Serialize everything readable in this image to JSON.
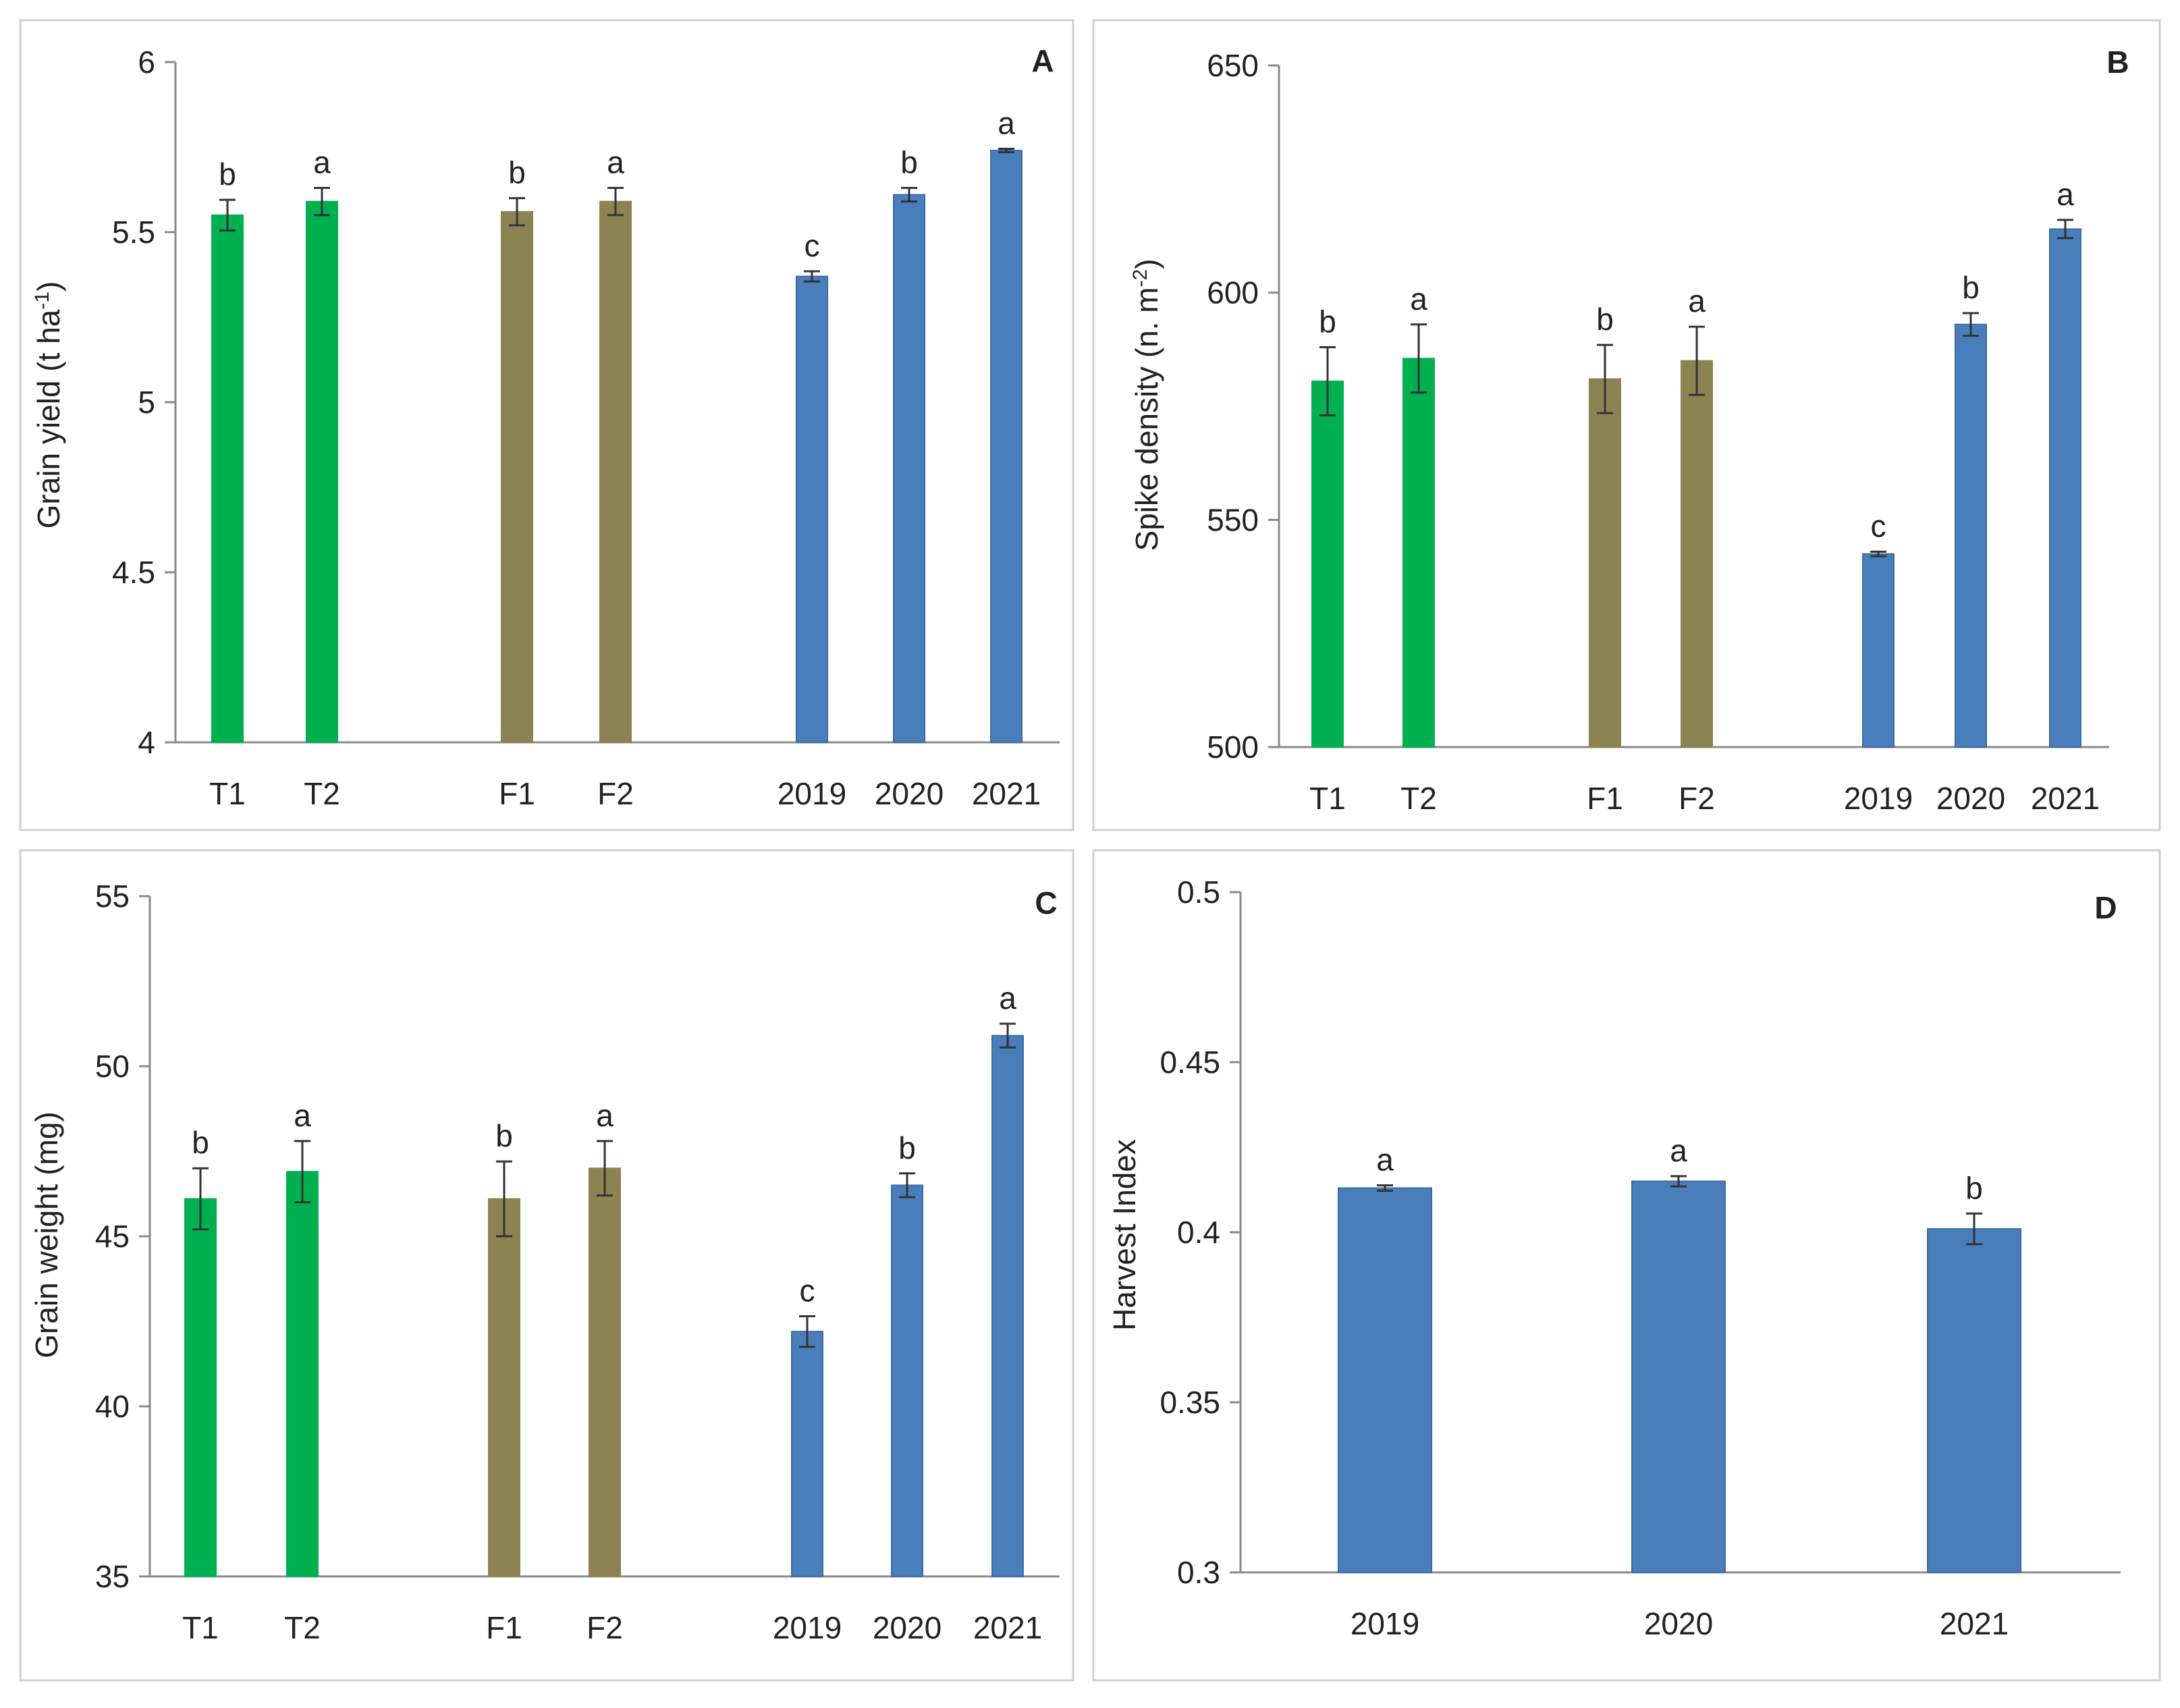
{
  "colors": {
    "tillage": "#00b050",
    "fertilization": "#8c8353",
    "year": "#4a7ebb",
    "bar_stroke_year": "#3b6aa8",
    "axis": "#888888",
    "error_bar": "#333333",
    "panel_border": "#cfcfcf"
  },
  "chart_data": [
    {
      "panel": "A",
      "type": "bar",
      "title": "",
      "xlabel": "",
      "ylabel": "Grain yield (t ha-1)",
      "ylabel_main": "Grain yield (t ha",
      "ylabel_sup": "-1",
      "ylabel_end": ")",
      "ylim": [
        4,
        6
      ],
      "yticks": [
        "6",
        "5.5",
        "5",
        "4.5",
        "4"
      ],
      "ytick_values": [
        6,
        5.5,
        5,
        4.5,
        4
      ],
      "grid": false,
      "categories": [
        "T1",
        "T2",
        "F1",
        "F2",
        "2019",
        "2020",
        "2021"
      ],
      "values": [
        5.55,
        5.59,
        5.56,
        5.59,
        5.37,
        5.61,
        5.74
      ],
      "errors": [
        0.045,
        0.04,
        0.04,
        0.04,
        0.015,
        0.02,
        0.005
      ],
      "letters": [
        "b",
        "a",
        "b",
        "a",
        "c",
        "b",
        "a"
      ],
      "groups": [
        "tillage",
        "tillage",
        "fertilization",
        "fertilization",
        "year",
        "year",
        "year"
      ]
    },
    {
      "panel": "B",
      "type": "bar",
      "title": "",
      "xlabel": "",
      "ylabel": "Spike density (n. m-2)",
      "ylabel_main": "Spike density (n. m",
      "ylabel_sup": "-2",
      "ylabel_end": ")",
      "ylim": [
        500,
        650
      ],
      "yticks": [
        "650",
        "600",
        "550",
        "500"
      ],
      "ytick_values": [
        650,
        600,
        550,
        500
      ],
      "grid": false,
      "categories": [
        "T1",
        "T2",
        "F1",
        "F2",
        "2019",
        "2020",
        "2021"
      ],
      "values": [
        580.5,
        585.5,
        581,
        585,
        542.5,
        593,
        614
      ],
      "errors": [
        7.5,
        7.5,
        7.5,
        7.5,
        0.5,
        2.5,
        2
      ],
      "letters": [
        "b",
        "a",
        "b",
        "a",
        "c",
        "b",
        "a"
      ],
      "groups": [
        "tillage",
        "tillage",
        "fertilization",
        "fertilization",
        "year",
        "year",
        "year"
      ]
    },
    {
      "panel": "C",
      "type": "bar",
      "title": "",
      "xlabel": "",
      "ylabel": "Grain weight (mg)",
      "ylabel_main": "Grain weight (mg)",
      "ylabel_sup": "",
      "ylabel_end": "",
      "ylim": [
        35,
        55
      ],
      "yticks": [
        "55",
        "50",
        "45",
        "40",
        "35"
      ],
      "ytick_values": [
        55,
        50,
        45,
        40,
        35
      ],
      "grid": false,
      "categories": [
        "T1",
        "T2",
        "F1",
        "F2",
        "2019",
        "2020",
        "2021"
      ],
      "values": [
        46.1,
        46.9,
        46.1,
        47.0,
        42.2,
        46.5,
        50.9
      ],
      "errors": [
        0.9,
        0.9,
        1.1,
        0.8,
        0.45,
        0.35,
        0.35
      ],
      "letters": [
        "b",
        "a",
        "b",
        "a",
        "c",
        "b",
        "a"
      ],
      "groups": [
        "tillage",
        "tillage",
        "fertilization",
        "fertilization",
        "year",
        "year",
        "year"
      ]
    },
    {
      "panel": "D",
      "type": "bar",
      "title": "",
      "xlabel": "",
      "ylabel": "Harvest Index",
      "ylabel_main": "Harvest Index",
      "ylabel_sup": "",
      "ylabel_end": "",
      "ylim": [
        0.3,
        0.5
      ],
      "yticks": [
        "0.5",
        "0.45",
        "0.4",
        "0.35",
        "0.3"
      ],
      "ytick_values": [
        0.5,
        0.45,
        0.4,
        0.35,
        0.3
      ],
      "grid": false,
      "categories": [
        "2019",
        "2020",
        "2021"
      ],
      "values": [
        0.413,
        0.415,
        0.401
      ],
      "errors": [
        0.0008,
        0.0015,
        0.0045
      ],
      "letters": [
        "a",
        "a",
        "b"
      ],
      "groups": [
        "year",
        "year",
        "year"
      ]
    }
  ]
}
